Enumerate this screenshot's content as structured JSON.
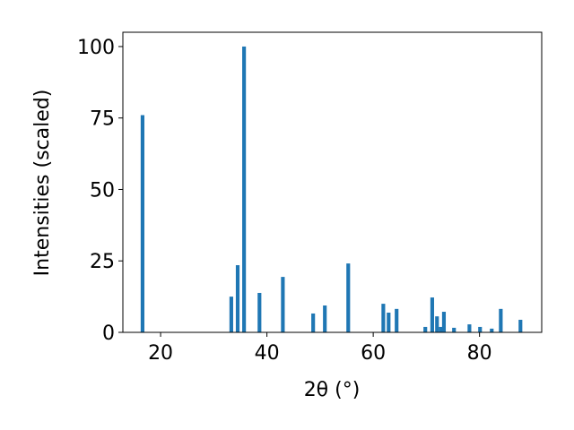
{
  "chart_data": {
    "type": "bar",
    "xlabel": "2θ (°)",
    "ylabel": "Intensities (scaled)",
    "x": [
      16.6,
      33.3,
      34.5,
      35.7,
      38.6,
      43.0,
      48.7,
      50.9,
      55.3,
      61.9,
      62.9,
      64.4,
      69.8,
      71.1,
      72.0,
      72.7,
      73.3,
      75.2,
      78.1,
      80.1,
      82.3,
      84.0,
      87.7
    ],
    "values": [
      76,
      12.5,
      23.5,
      100,
      13.8,
      19.4,
      6.6,
      9.4,
      24.1,
      10.0,
      6.9,
      8.2,
      1.9,
      12.2,
      5.6,
      1.9,
      7.2,
      1.6,
      2.8,
      1.9,
      1.3,
      8.2,
      4.4
    ],
    "color": "#1f77b4",
    "bar_width": 0.7,
    "xlim": [
      12.9,
      91.7
    ],
    "ylim": [
      0,
      105
    ],
    "xticks": [
      20,
      40,
      60,
      80
    ],
    "yticks": [
      0,
      25,
      50,
      75,
      100
    ]
  }
}
